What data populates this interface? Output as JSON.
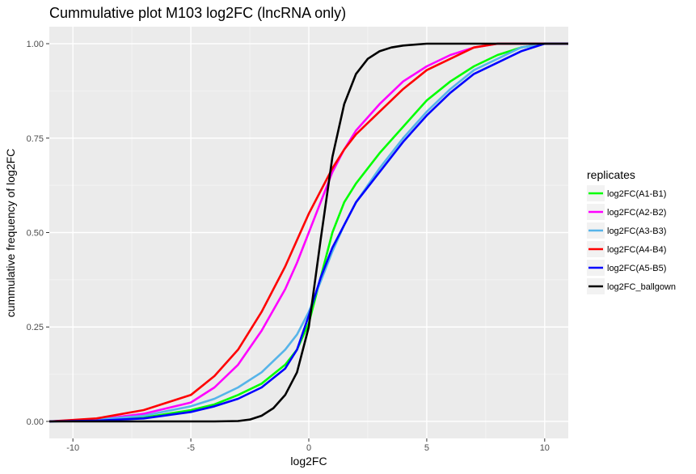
{
  "chart_data": {
    "type": "line",
    "title": "Cummulative plot M103 log2FC (lncRNA only)",
    "xlabel": "log2FC",
    "ylabel": "cummulative frequency of log2FC",
    "xlim": [
      -11,
      11
    ],
    "ylim": [
      -0.045,
      1.045
    ],
    "x_ticks": [
      -10,
      -5,
      0,
      5,
      10
    ],
    "x_tick_labels": [
      "-10",
      "-5",
      "0",
      "5",
      "10"
    ],
    "y_ticks": [
      0,
      0.25,
      0.5,
      0.75,
      1
    ],
    "y_tick_labels": [
      "0.00",
      "0.25",
      "0.50",
      "0.75",
      "1.00"
    ],
    "grid": true,
    "legend": {
      "title": "replicates",
      "position": "right"
    },
    "series": [
      {
        "name": "log2FC(A1-B1)",
        "color": "#00ff00",
        "x": [
          -11,
          -9,
          -7,
          -5,
          -4,
          -3,
          -2,
          -1,
          -0.5,
          0,
          0.5,
          1,
          1.5,
          2,
          3,
          4,
          5,
          6,
          7,
          8,
          9,
          10,
          11
        ],
        "y": [
          0,
          0.003,
          0.01,
          0.03,
          0.045,
          0.07,
          0.1,
          0.15,
          0.19,
          0.26,
          0.38,
          0.5,
          0.58,
          0.63,
          0.71,
          0.78,
          0.85,
          0.9,
          0.94,
          0.97,
          0.99,
          1.0,
          1.0
        ]
      },
      {
        "name": "log2FC(A2-B2)",
        "color": "#ff00ff",
        "x": [
          -11,
          -9,
          -7,
          -5,
          -4,
          -3,
          -2,
          -1,
          -0.5,
          0,
          0.5,
          1,
          1.5,
          2,
          3,
          4,
          5,
          6,
          7,
          8,
          9,
          10,
          11
        ],
        "y": [
          0,
          0.005,
          0.02,
          0.05,
          0.09,
          0.15,
          0.24,
          0.35,
          0.42,
          0.5,
          0.58,
          0.66,
          0.72,
          0.77,
          0.84,
          0.9,
          0.94,
          0.97,
          0.99,
          1.0,
          1.0,
          1.0,
          1.0
        ]
      },
      {
        "name": "log2FC(A3-B3)",
        "color": "#56b4e9",
        "x": [
          -11,
          -9,
          -7,
          -5,
          -4,
          -3,
          -2,
          -1,
          -0.5,
          0,
          0.5,
          1,
          1.5,
          2,
          3,
          4,
          5,
          6,
          7,
          8,
          9,
          10,
          11
        ],
        "y": [
          0,
          0.005,
          0.015,
          0.04,
          0.06,
          0.09,
          0.13,
          0.19,
          0.23,
          0.29,
          0.37,
          0.45,
          0.52,
          0.58,
          0.67,
          0.75,
          0.82,
          0.88,
          0.93,
          0.96,
          0.99,
          1.0,
          1.0
        ]
      },
      {
        "name": "log2FC(A4-B4)",
        "color": "#ff0000",
        "x": [
          -11,
          -9,
          -7,
          -5,
          -4,
          -3,
          -2,
          -1,
          -0.5,
          0,
          0.5,
          1,
          1.5,
          2,
          3,
          4,
          5,
          6,
          7,
          8,
          9,
          10,
          11
        ],
        "y": [
          0,
          0.008,
          0.03,
          0.07,
          0.12,
          0.19,
          0.29,
          0.41,
          0.48,
          0.55,
          0.61,
          0.67,
          0.72,
          0.76,
          0.82,
          0.88,
          0.93,
          0.96,
          0.99,
          1.0,
          1.0,
          1.0,
          1.0
        ]
      },
      {
        "name": "log2FC(A5-B5)",
        "color": "#0000ff",
        "x": [
          -11,
          -9,
          -7,
          -5,
          -4,
          -3,
          -2,
          -1,
          -0.5,
          0,
          0.5,
          1,
          1.5,
          2,
          3,
          4,
          5,
          6,
          7,
          8,
          9,
          10,
          11
        ],
        "y": [
          0,
          0.002,
          0.008,
          0.025,
          0.04,
          0.06,
          0.09,
          0.14,
          0.19,
          0.28,
          0.38,
          0.46,
          0.52,
          0.58,
          0.66,
          0.74,
          0.81,
          0.87,
          0.92,
          0.95,
          0.98,
          1.0,
          1.0
        ]
      },
      {
        "name": "log2FC_ballgown",
        "color": "#000000",
        "x": [
          -11,
          -5,
          -4,
          -3,
          -2.5,
          -2,
          -1.5,
          -1,
          -0.5,
          0,
          0.5,
          1,
          1.5,
          2,
          2.5,
          3,
          3.5,
          4,
          5,
          6,
          8,
          10,
          11
        ],
        "y": [
          0,
          0,
          0,
          0.001,
          0.005,
          0.015,
          0.035,
          0.07,
          0.13,
          0.25,
          0.48,
          0.7,
          0.84,
          0.92,
          0.96,
          0.98,
          0.99,
          0.995,
          1.0,
          1.0,
          1.0,
          1.0,
          1.0
        ]
      }
    ]
  }
}
